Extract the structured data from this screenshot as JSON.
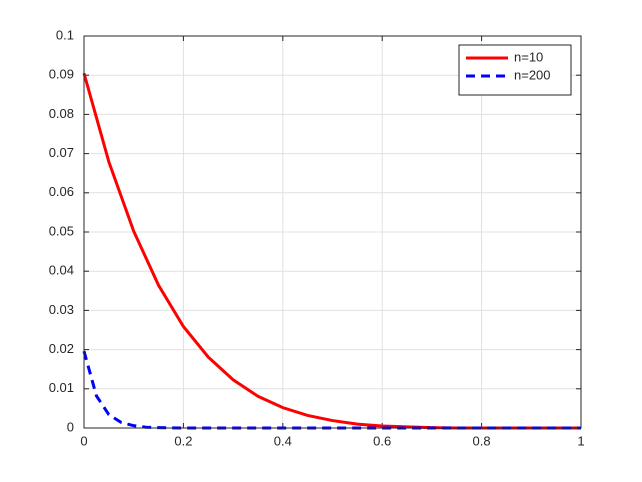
{
  "chart_data": {
    "type": "line",
    "series": [
      {
        "name": "n=10",
        "color": "#ff0000",
        "linestyle": "solid",
        "x": [
          0,
          0.05,
          0.1,
          0.15,
          0.2,
          0.25,
          0.3,
          0.35,
          0.4,
          0.45,
          0.5,
          0.55,
          0.6,
          0.65,
          0.7,
          0.75,
          0.8,
          0.85,
          0.9,
          0.95,
          1
        ],
        "values": [
          0.0905,
          0.0679,
          0.0502,
          0.0364,
          0.0259,
          0.0181,
          0.0123,
          0.0081,
          0.0052,
          0.0032,
          0.0019,
          0.001,
          0.0005,
          0.0003,
          0.0001,
          0,
          0,
          0,
          0,
          0,
          0
        ]
      },
      {
        "name": "n=200",
        "color": "#0000ff",
        "linestyle": "dashed",
        "x": [
          0,
          0.025,
          0.05,
          0.075,
          0.1,
          0.125,
          0.15,
          0.2,
          0.4,
          0.6,
          0.8,
          1
        ],
        "values": [
          0.0196,
          0.0082,
          0.0034,
          0.0014,
          0.0006,
          0.0002,
          0.0001,
          0,
          0,
          0,
          0,
          0
        ]
      }
    ],
    "xlim": [
      0,
      1
    ],
    "xticks": [
      0,
      0.2,
      0.4,
      0.6,
      0.8,
      1
    ],
    "ylim": [
      0,
      0.1
    ],
    "yticks": [
      0,
      0.01,
      0.02,
      0.03,
      0.04,
      0.05,
      0.06,
      0.07,
      0.08,
      0.09,
      0.1
    ],
    "grid": true,
    "legend": "top-right"
  }
}
